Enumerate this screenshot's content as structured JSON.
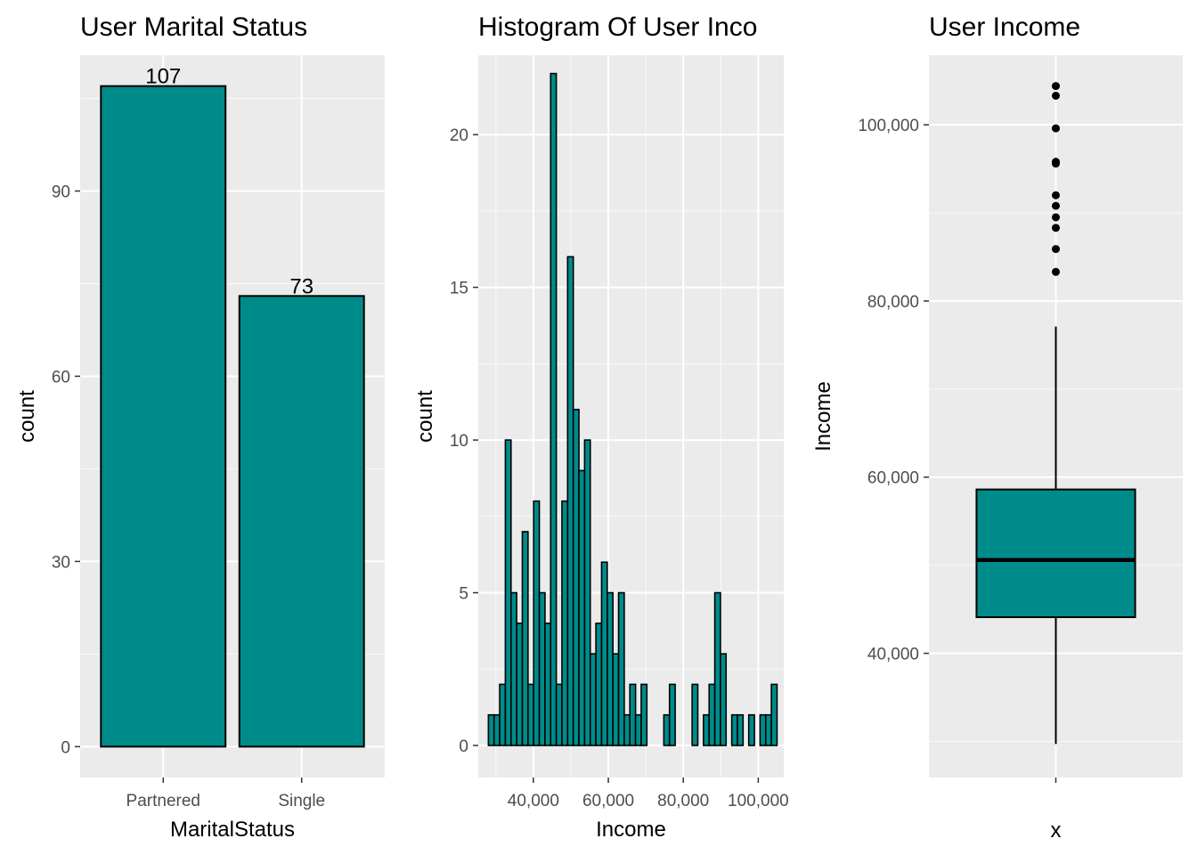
{
  "colors": {
    "fill": "#008b8b",
    "outline": "#000000",
    "panel": "#ebebeb",
    "grid": "#ffffff"
  },
  "chart_data": [
    {
      "type": "bar",
      "title": "User Marital Status",
      "xlabel": "MaritalStatus",
      "ylabel": "count",
      "categories": [
        "Partnered",
        "Single"
      ],
      "values": [
        107,
        73
      ],
      "data_labels": [
        "107",
        "73"
      ],
      "ylim": [
        -5,
        112
      ],
      "yticks": [
        0,
        30,
        60,
        90
      ],
      "ytick_labels": [
        "0",
        "30",
        "60",
        "90"
      ],
      "grid": true
    },
    {
      "type": "bar",
      "subtype": "histogram",
      "title": "Histogram Of User Inco",
      "xlabel": "Income",
      "ylabel": "count",
      "bins": {
        "start": 28000,
        "width": 1510,
        "counts": [
          1,
          1,
          2,
          10,
          5,
          4,
          7,
          2,
          8,
          5,
          4,
          22,
          2,
          8,
          16,
          11,
          9,
          10,
          3,
          4,
          6,
          5,
          3,
          5,
          1,
          2,
          1,
          2,
          0,
          0,
          0,
          1,
          2,
          0,
          0,
          0,
          2,
          0,
          1,
          2,
          5,
          3,
          0,
          1,
          1,
          0,
          1,
          0,
          1,
          1,
          2
        ]
      },
      "xlim": [
        25300,
        106800
      ],
      "ylim": [
        -1.05,
        22.6
      ],
      "xticks": [
        40000,
        60000,
        80000,
        100000
      ],
      "xtick_labels": [
        "40,000",
        "60,000",
        "80,000",
        "100,000"
      ],
      "yticks": [
        0,
        5,
        10,
        15,
        20
      ],
      "ytick_labels": [
        "0",
        "5",
        "10",
        "15",
        "20"
      ],
      "grid": true
    },
    {
      "type": "box",
      "title": "User Income",
      "xlabel": "x",
      "ylabel": "Income",
      "categories": [
        ""
      ],
      "box": {
        "whisker_low": 29700,
        "q1": 44100,
        "median": 50600,
        "q3": 58600,
        "whisker_high": 77100
      },
      "outliers": [
        83300,
        85900,
        88300,
        89500,
        90800,
        92000,
        95600,
        95800,
        99600,
        103300,
        104400
      ],
      "ylim": [
        25900,
        107900
      ],
      "yticks": [
        40000,
        60000,
        80000,
        100000
      ],
      "ytick_labels": [
        "40,000",
        "60,000",
        "80,000",
        "100,000"
      ],
      "grid": true
    }
  ]
}
